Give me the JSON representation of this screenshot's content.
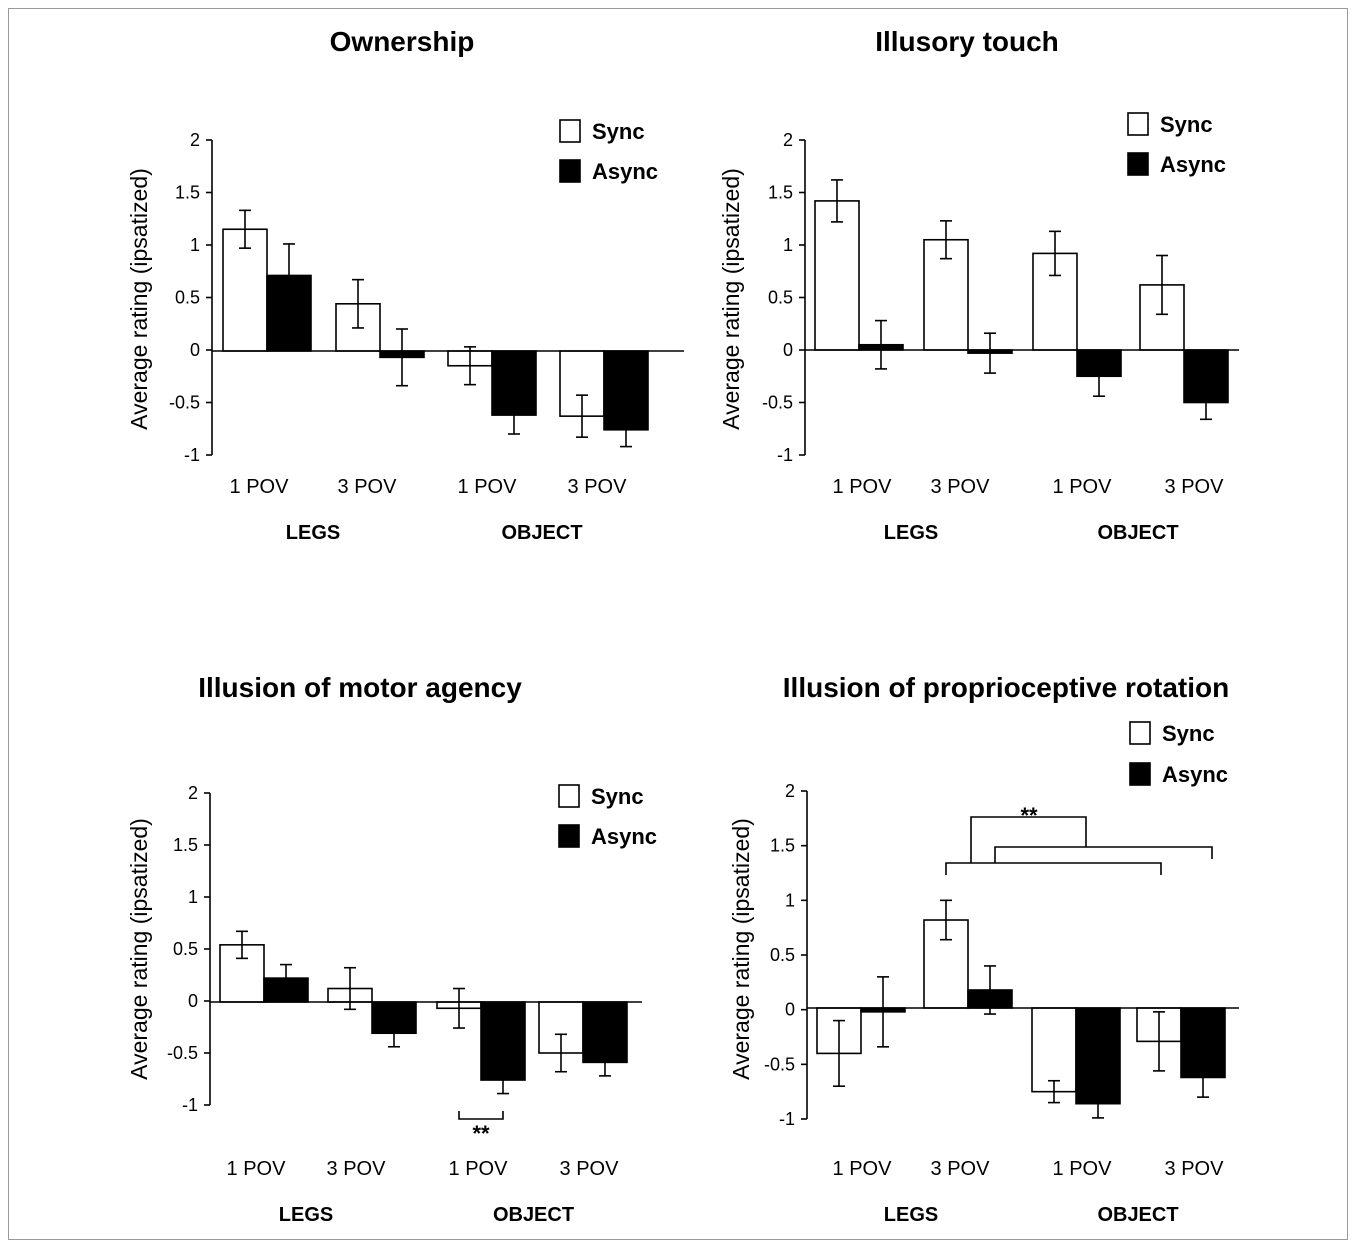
{
  "chart_data": [
    {
      "type": "bar",
      "title": "Ownership",
      "ylabel": "Average rating (ipsatized)",
      "ylim": [
        -1,
        2
      ],
      "yticks": [
        "2",
        "1.5",
        "1",
        "0.5",
        "0",
        "-0.5",
        "-1"
      ],
      "categories": [
        "1 POV",
        "3 POV",
        "1 POV",
        "3 POV"
      ],
      "groups": [
        "LEGS",
        "OBJECT"
      ],
      "legend": [
        "Sync",
        "Async"
      ],
      "series": [
        {
          "name": "Sync",
          "color": "#ffffff",
          "values": [
            1.15,
            0.44,
            -0.15,
            -0.63
          ],
          "errors": [
            0.18,
            0.23,
            0.18,
            0.2
          ]
        },
        {
          "name": "Async",
          "color": "#000000",
          "values": [
            0.71,
            -0.07,
            -0.62,
            -0.76
          ],
          "errors": [
            0.3,
            0.27,
            0.18,
            0.16
          ]
        }
      ],
      "annotations": []
    },
    {
      "type": "bar",
      "title": "Illusory touch",
      "ylabel": "Average rating (ipsatized)",
      "ylim": [
        -1,
        2
      ],
      "yticks": [
        "2",
        "1.5",
        "1",
        "0.5",
        "0",
        "-0.5",
        "-1"
      ],
      "categories": [
        "1 POV",
        "3 POV",
        "1 POV",
        "3 POV"
      ],
      "groups": [
        "LEGS",
        "OBJECT"
      ],
      "legend": [
        "Sync",
        "Async"
      ],
      "series": [
        {
          "name": "Sync",
          "color": "#ffffff",
          "values": [
            1.42,
            1.05,
            0.92,
            0.62
          ],
          "errors": [
            0.2,
            0.18,
            0.21,
            0.28
          ]
        },
        {
          "name": "Async",
          "color": "#000000",
          "values": [
            0.05,
            -0.03,
            -0.25,
            -0.5
          ],
          "errors": [
            0.23,
            0.19,
            0.19,
            0.16
          ]
        }
      ],
      "annotations": []
    },
    {
      "type": "bar",
      "title": "Illusion of motor agency",
      "ylabel": "Average rating (ipsatized)",
      "ylim": [
        -1,
        2
      ],
      "yticks": [
        "2",
        "1.5",
        "1",
        "0.5",
        "0",
        "-0.5",
        "-1"
      ],
      "categories": [
        "1 POV",
        "3 POV",
        "1 POV",
        "3 POV"
      ],
      "groups": [
        "LEGS",
        "OBJECT"
      ],
      "legend": [
        "Sync",
        "Async"
      ],
      "series": [
        {
          "name": "Sync",
          "color": "#ffffff",
          "values": [
            0.54,
            0.12,
            -0.07,
            -0.5
          ],
          "errors": [
            0.13,
            0.2,
            0.19,
            0.18
          ]
        },
        {
          "name": "Async",
          "color": "#000000",
          "values": [
            0.22,
            -0.31,
            -0.76,
            -0.59
          ],
          "errors": [
            0.13,
            0.13,
            0.13,
            0.13
          ]
        }
      ],
      "annotations": [
        {
          "text": "**",
          "type": "pair",
          "category_index": 2
        }
      ]
    },
    {
      "type": "bar",
      "title": "Illusion of proprioceptive rotation",
      "ylabel": "Average rating (ipsatized)",
      "ylim": [
        -1,
        2
      ],
      "yticks": [
        "2",
        "1.5",
        "1",
        "0.5",
        "0",
        "-0.5",
        "-1"
      ],
      "categories": [
        "1 POV",
        "3 POV",
        "1 POV",
        "3 POV"
      ],
      "groups": [
        "LEGS",
        "OBJECT"
      ],
      "legend": [
        "Sync",
        "Async"
      ],
      "series": [
        {
          "name": "Sync",
          "color": "#ffffff",
          "values": [
            -0.4,
            0.82,
            -0.75,
            -0.29
          ],
          "errors": [
            0.3,
            0.18,
            0.1,
            0.27
          ]
        },
        {
          "name": "Async",
          "color": "#000000",
          "values": [
            -0.02,
            0.18,
            -0.86,
            -0.62
          ],
          "errors": [
            0.32,
            0.22,
            0.13,
            0.18
          ]
        }
      ],
      "annotations": [
        {
          "text": "**",
          "type": "nested-bracket"
        }
      ]
    }
  ]
}
